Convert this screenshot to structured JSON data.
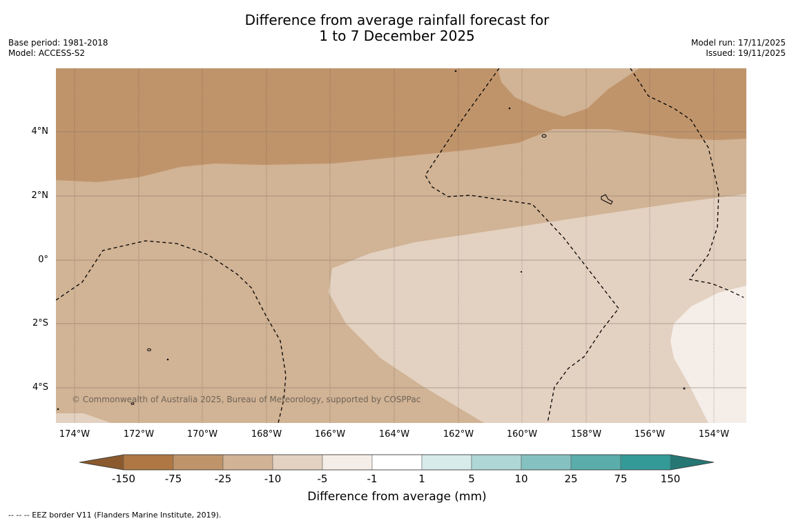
{
  "title": {
    "line1": "Difference from average rainfall forecast for",
    "line2": "1 to 7 December 2025"
  },
  "meta_left": {
    "base_period": "Base period: 1981-2018",
    "model": "Model: ACCESS-S2"
  },
  "meta_right": {
    "model_run": "Model run: 17/11/2025",
    "issued": "Issued: 19/11/2025"
  },
  "map": {
    "lat_labels": [
      "4°N",
      "2°N",
      "0°",
      "2°S",
      "4°S"
    ],
    "lon_labels": [
      "174°W",
      "172°W",
      "170°W",
      "168°W",
      "166°W",
      "164°W",
      "162°W",
      "160°W",
      "158°W",
      "156°W",
      "154°W"
    ],
    "copyright": "© Commonwealth of Australia 2025, Bureau of Meteorology, supported by COSPPac",
    "colors": {
      "dark_dry": "#c0946b",
      "medium_dry": "#d1b395",
      "light_dry": "#e3d1c1",
      "very_light_dry": "#f5ede7"
    }
  },
  "colorbar": {
    "ticks": [
      "-150",
      "-75",
      "-25",
      "-10",
      "-5",
      "-1",
      "1",
      "5",
      "10",
      "25",
      "75",
      "150"
    ],
    "colors": [
      "#8a5a2e",
      "#af7744",
      "#c0946b",
      "#d1b395",
      "#e3d1c1",
      "#f5ede7",
      "#ffffff",
      "#d6ebea",
      "#aed7d6",
      "#85c1c0",
      "#5aadab",
      "#349a97",
      "#267774"
    ],
    "label": "Difference from average (mm)"
  },
  "footnote": "--  --  -- EEZ border V11 (Flanders Marine Institute, 2019)."
}
